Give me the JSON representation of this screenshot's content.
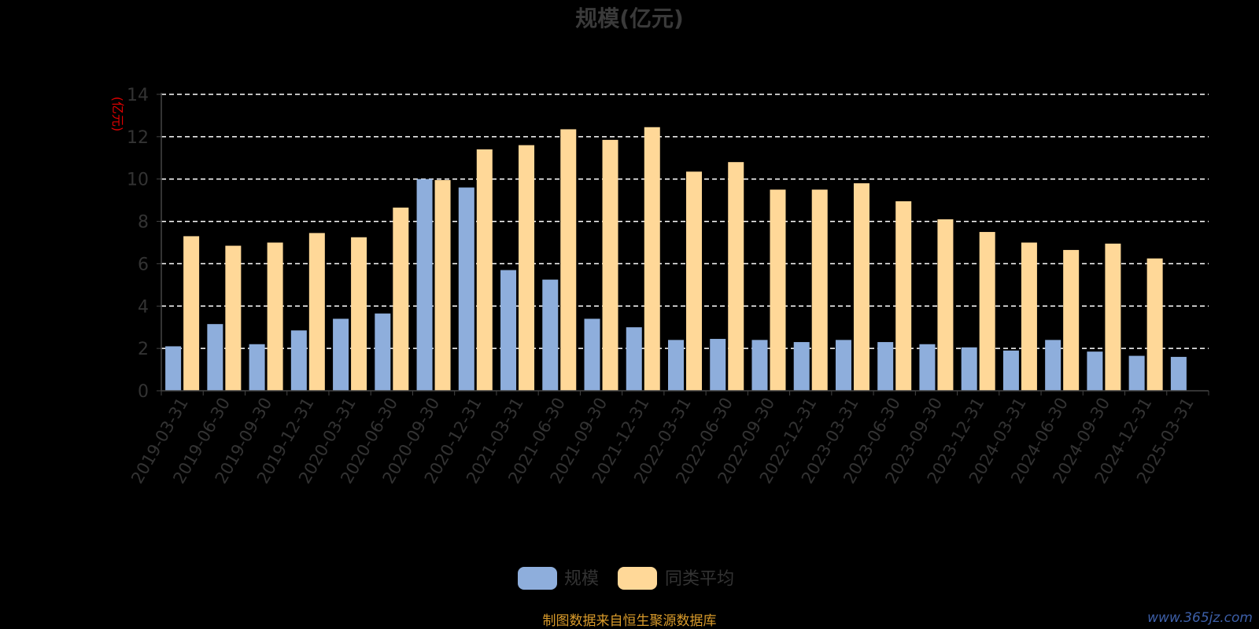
{
  "chart_data": {
    "type": "bar",
    "title": "规模(亿元)",
    "ylabel": "(亿元)",
    "xlabel": "",
    "ylim": [
      0,
      14
    ],
    "yticks": [
      0,
      2,
      4,
      6,
      8,
      10,
      12,
      14
    ],
    "grid": true,
    "legend_position": "bottom-center",
    "categories": [
      "2019-03-31",
      "2019-06-30",
      "2019-09-30",
      "2019-12-31",
      "2020-03-31",
      "2020-06-30",
      "2020-09-30",
      "2020-12-31",
      "2021-03-31",
      "2021-06-30",
      "2021-09-30",
      "2021-12-31",
      "2022-03-31",
      "2022-06-30",
      "2022-09-30",
      "2022-12-31",
      "2023-03-31",
      "2023-06-30",
      "2023-09-30",
      "2023-12-31",
      "2024-03-31",
      "2024-06-30",
      "2024-09-30",
      "2024-12-31",
      "2025-03-31"
    ],
    "series": [
      {
        "name": "规模",
        "color": "#8eaedc",
        "values": [
          2.1,
          3.15,
          2.2,
          2.85,
          3.4,
          3.65,
          10.0,
          9.6,
          5.7,
          5.25,
          3.4,
          3.0,
          2.4,
          2.45,
          2.4,
          2.3,
          2.4,
          2.3,
          2.2,
          2.05,
          1.9,
          2.4,
          1.85,
          1.65,
          1.6
        ]
      },
      {
        "name": "同类平均",
        "color": "#ffd898",
        "values": [
          7.3,
          6.85,
          7.0,
          7.45,
          7.25,
          8.65,
          9.95,
          11.4,
          11.6,
          12.35,
          11.85,
          12.45,
          10.35,
          10.8,
          9.5,
          9.5,
          9.8,
          8.95,
          8.1,
          7.5,
          7.0,
          6.65,
          6.95,
          6.25,
          null
        ]
      }
    ]
  },
  "legend": {
    "items": [
      "规模",
      "同类平均"
    ]
  },
  "footer": {
    "source": "制图数据来自恒生聚源数据库",
    "watermark": "www.365jz.com"
  }
}
